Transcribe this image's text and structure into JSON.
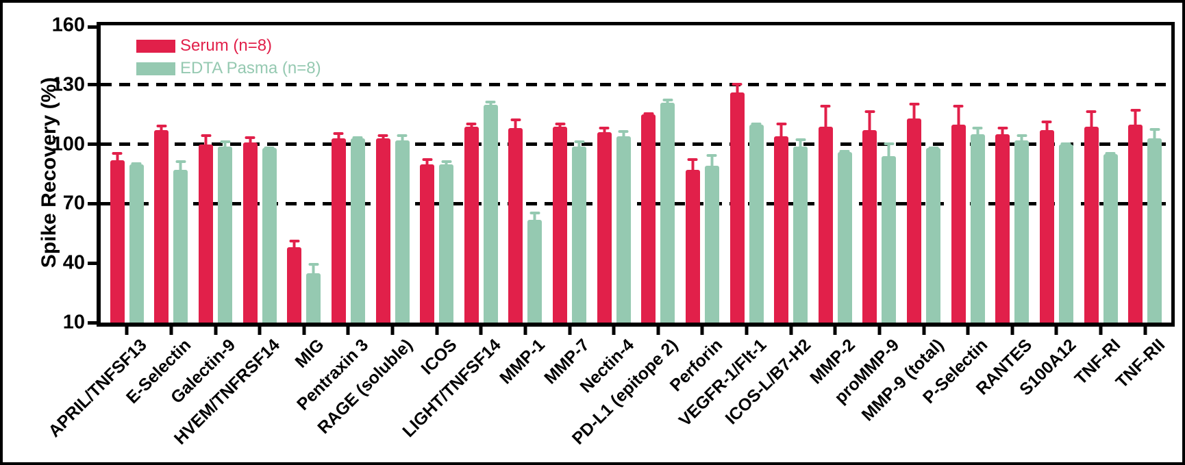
{
  "chart_data": {
    "type": "bar",
    "title": "",
    "xlabel": "",
    "ylabel": "Spike Recovery (%)",
    "ylim": [
      10,
      160
    ],
    "yticks": [
      10,
      40,
      70,
      100,
      130,
      160
    ],
    "gridlines_y": [
      70,
      100,
      130
    ],
    "grid": "dashed-horizontal",
    "legend_position": "top-left-inside",
    "error_bars": "upper-only, colored same as series",
    "categories": [
      "APRIL/TNFSF13",
      "E-Selectin",
      "Galectin-9",
      "HVEM/TNFRSF14",
      "MIG",
      "Pentraxin 3",
      "RAGE (soluble)",
      "ICOS",
      "LIGHT/TNFSF14",
      "MMP-1",
      "MMP-7",
      "Nectin-4",
      "PD-L1 (epitope 2)",
      "Perforin",
      "VEGFR-1/Flt-1",
      "ICOS-L/B7-H2",
      "MMP-2",
      "proMMP-9",
      "MMP-9 (total)",
      "P-Selectin",
      "RANTES",
      "S100A12",
      "TNF-RI",
      "TNF-RII"
    ],
    "series": [
      {
        "name": "Serum (n=8)",
        "color": "#E1204A",
        "values": [
          92,
          107,
          100,
          101,
          48,
          103,
          103,
          90,
          109,
          108,
          109,
          106,
          115,
          87,
          126,
          104,
          109,
          107,
          113,
          110,
          105,
          107,
          109,
          110
        ],
        "errors": [
          4,
          3,
          5,
          3,
          4,
          3,
          2,
          3,
          2,
          5,
          2,
          3,
          1,
          6,
          5,
          7,
          11,
          10,
          8,
          10,
          4,
          5,
          8,
          8
        ]
      },
      {
        "name": "EDTA Pasma (n=8)",
        "color": "#95C9B1",
        "values": [
          90,
          87,
          99,
          98,
          35,
          103,
          102,
          90,
          120,
          62,
          99,
          104,
          121,
          89,
          110,
          99,
          96,
          94,
          98,
          105,
          102,
          100,
          95,
          103
        ],
        "errors": [
          1,
          5,
          3,
          1,
          5,
          1,
          3,
          2,
          2,
          4,
          3,
          3,
          2,
          6,
          1,
          4,
          1,
          7,
          1,
          4,
          3,
          1,
          1,
          5
        ]
      }
    ]
  }
}
